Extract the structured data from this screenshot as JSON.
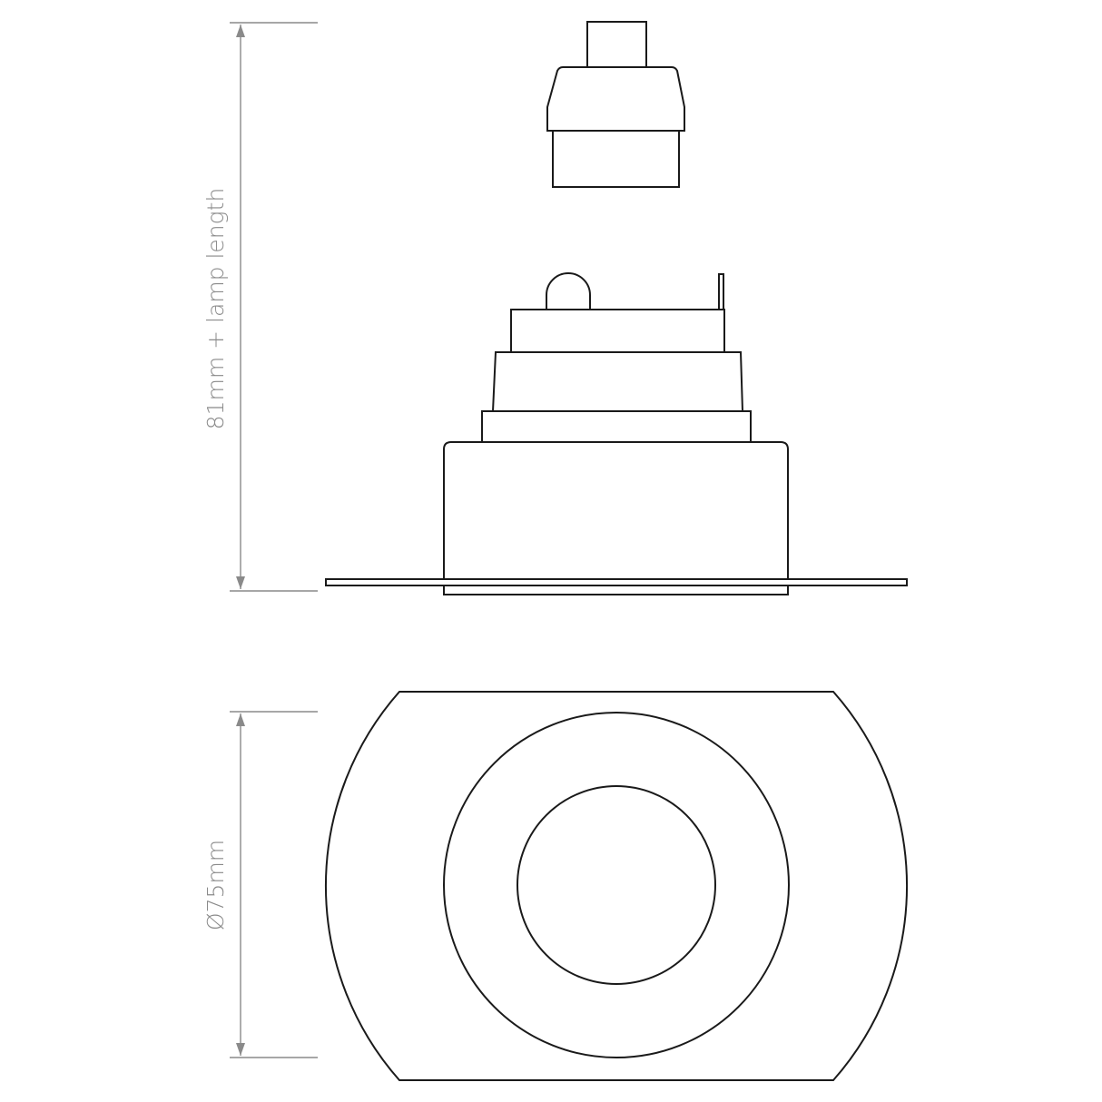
{
  "dimensions": {
    "height_label": "81mm + lamp length",
    "diameter_label": "Ø75mm"
  },
  "colors": {
    "outline": "#1a1a1a",
    "dimension": "#8a8a8a",
    "background": "#ffffff"
  }
}
